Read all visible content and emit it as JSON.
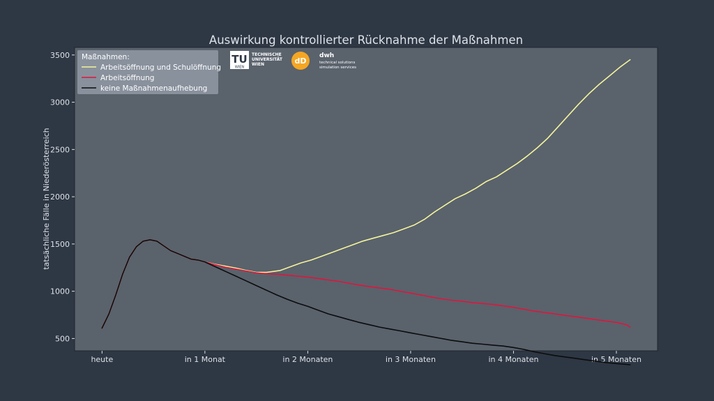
{
  "chart_data": {
    "type": "line",
    "title": "Auswirkung kontrollierter Rücknahme der Maßnahmen",
    "xlabel": "",
    "ylabel": "tatsächliche Fälle in Niederösterreich",
    "x_tick_labels": [
      "heute",
      "in 1 Monat",
      "in 2 Monaten",
      "in 3 Monaten",
      "in 4 Monaten",
      "in 5 Monaten"
    ],
    "x_tick_days": [
      0,
      30,
      60,
      90,
      120,
      150
    ],
    "xlim": [
      -8,
      162
    ],
    "ylim": [
      370,
      3580
    ],
    "y_ticks": [
      500,
      1000,
      1500,
      2000,
      2500,
      3000,
      3500
    ],
    "grid": false,
    "legend": {
      "title": "Maßnahmen:",
      "placement": "top-left",
      "entries": [
        "Arbeitsöffnung und Schulöffnung",
        "Arbeitsöffnung",
        "keine Maßnahmenaufhebung"
      ]
    },
    "series": [
      {
        "name": "Arbeitsöffnung und Schulöffnung",
        "color": "#f4f49a",
        "x": [
          0,
          2,
          4,
          6,
          8,
          10,
          12,
          14,
          16,
          18,
          20,
          22,
          24,
          26,
          28,
          30,
          33,
          36,
          39,
          42,
          45,
          48,
          50,
          52,
          55,
          58,
          61,
          64,
          67,
          70,
          73,
          76,
          79,
          82,
          85,
          88,
          91,
          94,
          97,
          100,
          103,
          106,
          109,
          112,
          115,
          118,
          121,
          124,
          127,
          130,
          133,
          136,
          139,
          142,
          145,
          148,
          151,
          154
        ],
        "y": [
          610,
          760,
          960,
          1180,
          1360,
          1470,
          1530,
          1545,
          1530,
          1480,
          1430,
          1400,
          1370,
          1340,
          1330,
          1310,
          1285,
          1265,
          1245,
          1220,
          1200,
          1200,
          1210,
          1220,
          1260,
          1300,
          1330,
          1370,
          1410,
          1450,
          1490,
          1530,
          1560,
          1590,
          1620,
          1660,
          1700,
          1760,
          1840,
          1910,
          1980,
          2030,
          2090,
          2160,
          2210,
          2280,
          2350,
          2430,
          2520,
          2620,
          2740,
          2860,
          2980,
          3090,
          3190,
          3280,
          3370,
          3450
        ]
      },
      {
        "name": "Arbeitsöffnung",
        "color": "#e0153c",
        "x": [
          0,
          2,
          4,
          6,
          8,
          10,
          12,
          14,
          16,
          18,
          20,
          22,
          24,
          26,
          28,
          30,
          33,
          36,
          39,
          42,
          45,
          48,
          51,
          54,
          57,
          60,
          63,
          66,
          69,
          72,
          75,
          78,
          81,
          84,
          87,
          90,
          93,
          96,
          99,
          102,
          105,
          108,
          111,
          114,
          117,
          120,
          123,
          126,
          129,
          132,
          135,
          138,
          141,
          144,
          147,
          150,
          153,
          154
        ],
        "y": [
          610,
          760,
          960,
          1180,
          1360,
          1470,
          1530,
          1545,
          1530,
          1480,
          1430,
          1400,
          1370,
          1340,
          1330,
          1310,
          1280,
          1255,
          1235,
          1215,
          1195,
          1185,
          1180,
          1170,
          1160,
          1150,
          1135,
          1120,
          1105,
          1085,
          1065,
          1050,
          1035,
          1020,
          1000,
          980,
          960,
          940,
          920,
          905,
          895,
          880,
          870,
          860,
          845,
          830,
          810,
          790,
          775,
          760,
          745,
          730,
          715,
          700,
          685,
          670,
          645,
          620
        ]
      },
      {
        "name": "keine Maßnahmenaufhebung",
        "color": "#0c0c0c",
        "x": [
          0,
          2,
          4,
          6,
          8,
          10,
          12,
          14,
          16,
          18,
          20,
          22,
          24,
          26,
          28,
          30,
          33,
          36,
          39,
          42,
          45,
          48,
          51,
          54,
          57,
          60,
          63,
          66,
          69,
          72,
          75,
          78,
          81,
          84,
          87,
          90,
          93,
          96,
          99,
          102,
          105,
          108,
          111,
          114,
          117,
          120,
          123,
          126,
          129,
          132,
          135,
          138,
          141,
          144,
          147,
          150,
          153,
          154
        ],
        "y": [
          610,
          760,
          960,
          1180,
          1360,
          1470,
          1530,
          1545,
          1530,
          1480,
          1430,
          1400,
          1370,
          1340,
          1330,
          1310,
          1260,
          1210,
          1160,
          1110,
          1060,
          1010,
          960,
          915,
          875,
          840,
          800,
          760,
          730,
          700,
          670,
          645,
          620,
          600,
          580,
          560,
          540,
          520,
          500,
          480,
          465,
          450,
          440,
          430,
          420,
          405,
          385,
          360,
          340,
          320,
          305,
          290,
          275,
          260,
          245,
          235,
          225,
          222
        ]
      }
    ]
  },
  "logos": {
    "tu_mark": "TU",
    "tu_sub": "WIEN",
    "tu_lines": [
      "TECHNISCHE",
      "UNIVERSITÄT",
      "WIEN"
    ],
    "dwh_mark": "dD",
    "dwh_name": "dwh",
    "dwh_lines": [
      "technical solutions",
      "simulation services"
    ]
  },
  "colors": {
    "background": "#2e3744",
    "plot_area": "#5a626c",
    "text": "#dde2e8",
    "dwh_orange": "#f5a623"
  }
}
